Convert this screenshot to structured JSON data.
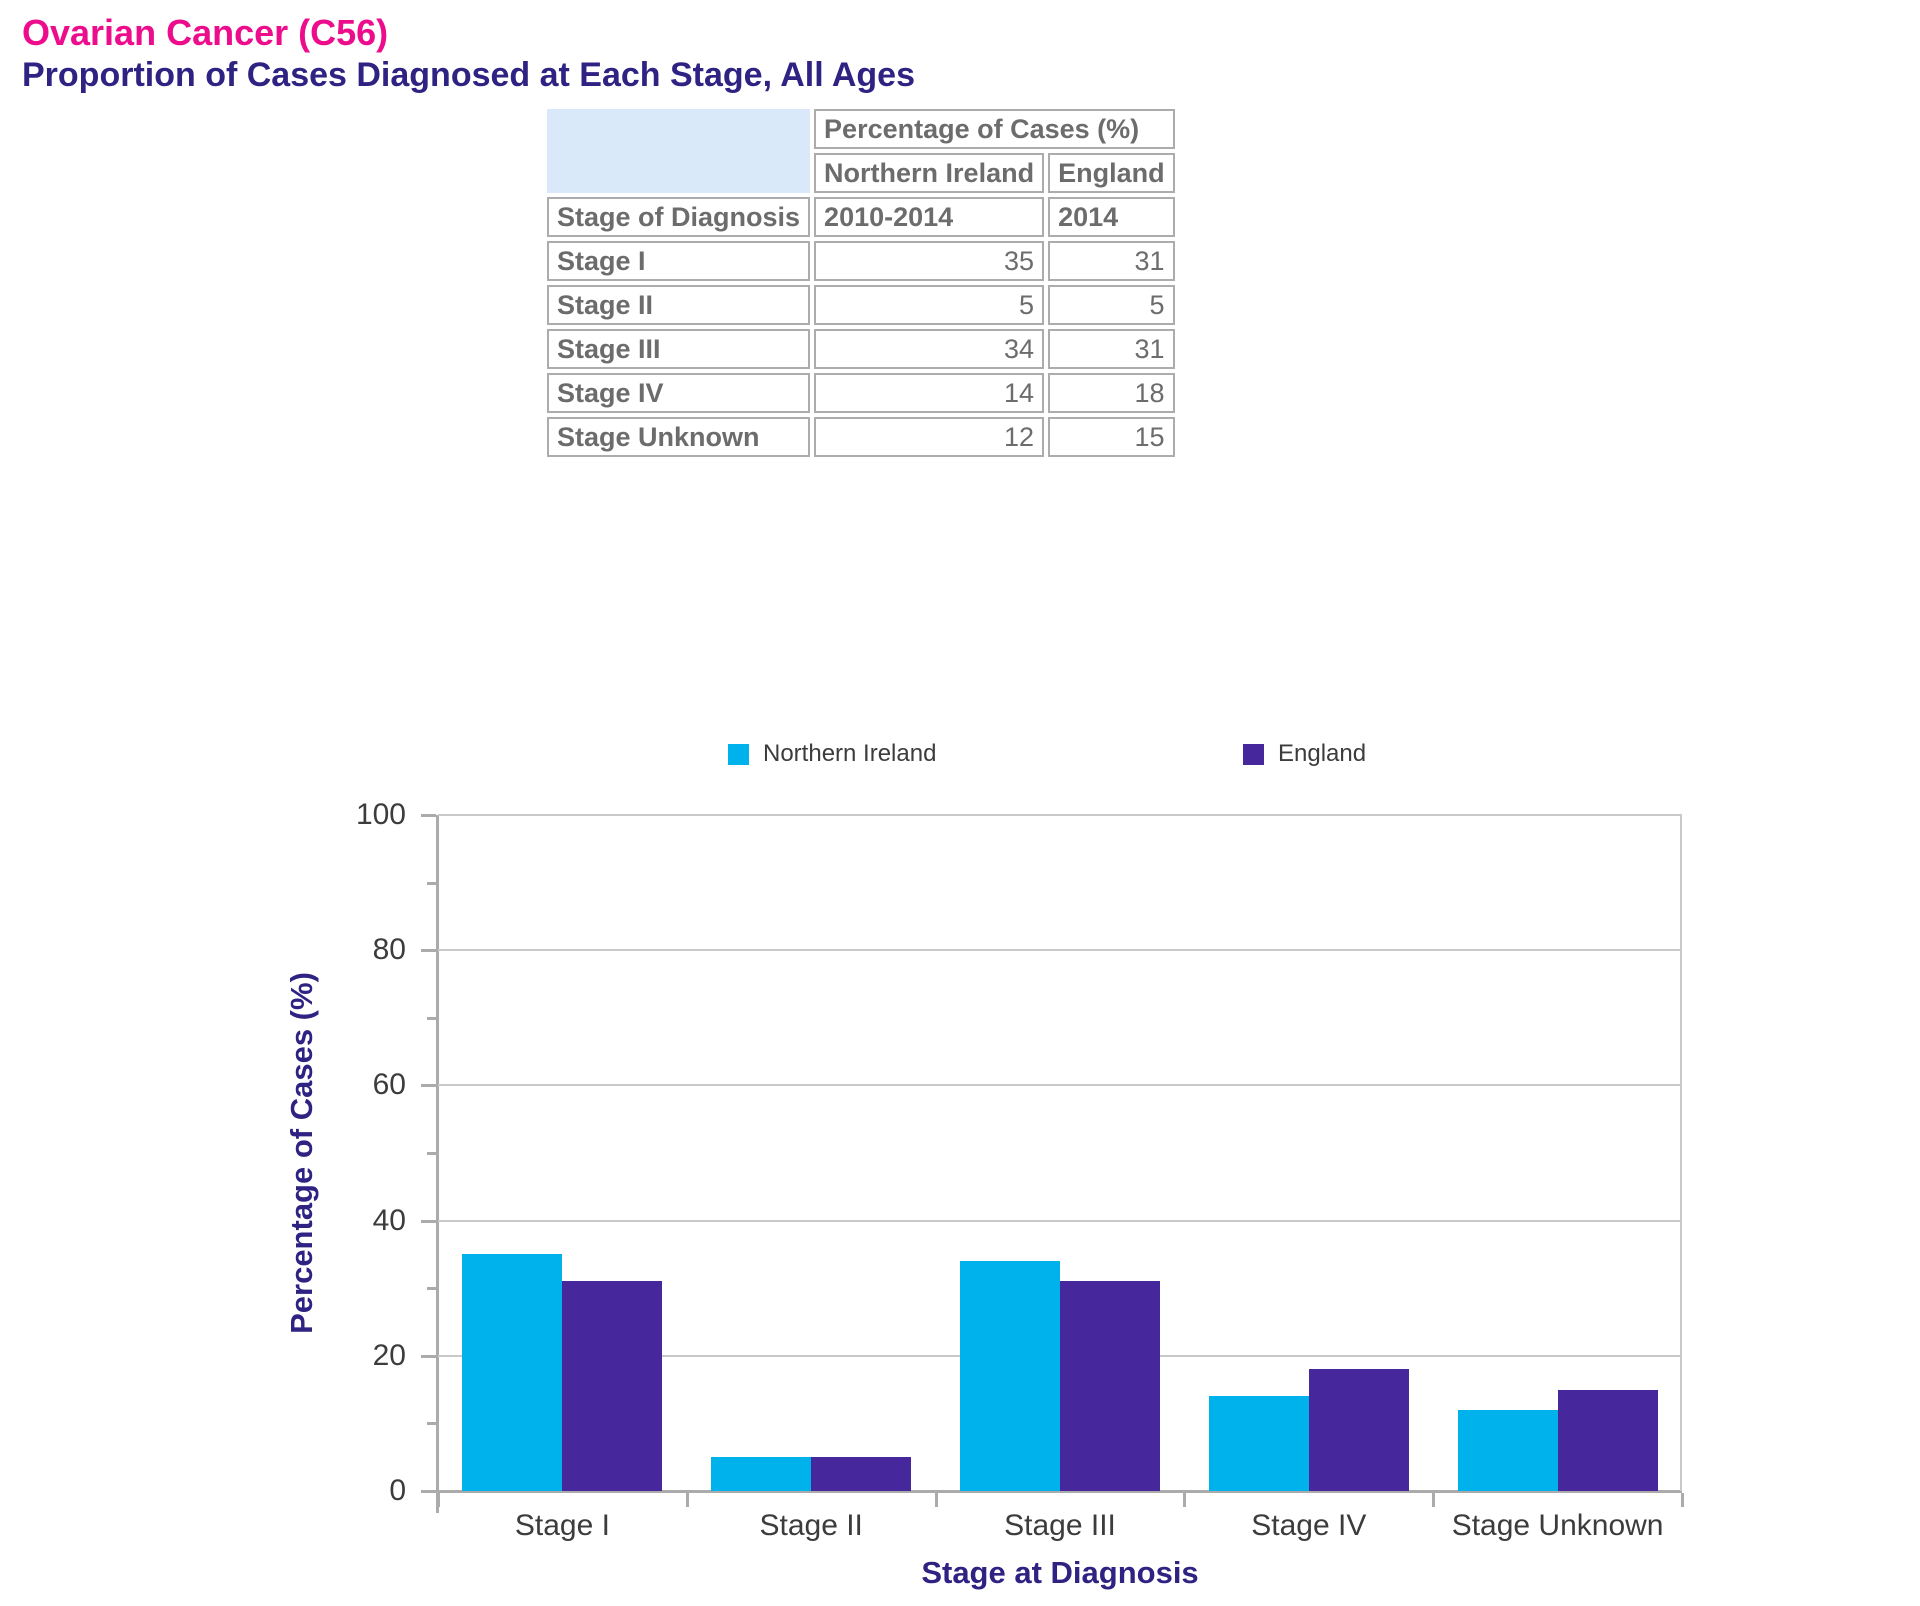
{
  "header": {
    "title": "Ovarian Cancer (C56)",
    "subtitle": "Proportion of Cases Diagnosed at Each Stage, All Ages"
  },
  "table": {
    "col_group_header": "Percentage of Cases (%)",
    "col_headers": [
      "Northern Ireland",
      "England"
    ],
    "row_header": "Stage of Diagnosis",
    "period_headers": [
      "2010-2014",
      "2014"
    ],
    "rows": [
      {
        "label": "Stage I",
        "northern_ireland": "35",
        "england": "31"
      },
      {
        "label": "Stage II",
        "northern_ireland": "5",
        "england": "5"
      },
      {
        "label": "Stage III",
        "northern_ireland": "34",
        "england": "31"
      },
      {
        "label": "Stage IV",
        "northern_ireland": "14",
        "england": "18"
      },
      {
        "label": "Stage Unknown",
        "northern_ireland": "12",
        "england": "15"
      }
    ]
  },
  "legend": {
    "items": [
      {
        "label": "Northern Ireland",
        "color": "#00B2EC"
      },
      {
        "label": "England",
        "color": "#46289C"
      }
    ]
  },
  "chart_data": {
    "type": "bar",
    "categories": [
      "Stage I",
      "Stage II",
      "Stage III",
      "Stage IV",
      "Stage Unknown"
    ],
    "series": [
      {
        "name": "Northern Ireland",
        "color": "#00B2EC",
        "values": [
          35,
          5,
          34,
          14,
          12
        ]
      },
      {
        "name": "England",
        "color": "#46289C",
        "values": [
          31,
          5,
          31,
          18,
          15
        ]
      }
    ],
    "title": "",
    "xlabel": "Stage at Diagnosis",
    "ylabel": "Percentage of Cases (%)",
    "ylim": [
      0,
      100
    ],
    "ytick_major_step": 20,
    "ytick_minor_step": 10,
    "grid": true,
    "legend_position": "top"
  },
  "colors": {
    "title_pink": "#EC0C8C",
    "heading_indigo": "#2E2282",
    "table_text_gray": "#6C6C6C",
    "axis_text_gray": "#3C3C3C",
    "gridline_gray": "#C9C9C9"
  }
}
